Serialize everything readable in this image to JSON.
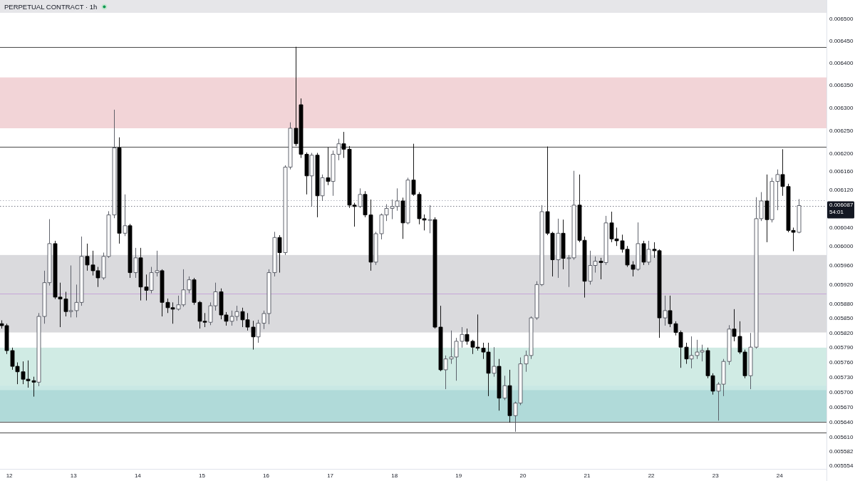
{
  "chart_data": {
    "type": "candlestick",
    "title": "PERPETUAL CONTRACT · 1h",
    "x": [
      11.875,
      11.9583,
      12.0417,
      12.125,
      12.2083,
      12.2917,
      12.375,
      12.4583,
      12.5417,
      12.625,
      12.7083,
      12.7917,
      12.875,
      12.9583,
      13.0417,
      13.125,
      13.2083,
      13.2917,
      13.375,
      13.4583,
      13.5417,
      13.625,
      13.7083,
      13.7917,
      13.875,
      13.9583,
      14.0417,
      14.125,
      14.2083,
      14.2917,
      14.375,
      14.4583,
      14.5417,
      14.625,
      14.7083,
      14.7917,
      14.875,
      14.9583,
      15.0417,
      15.125,
      15.2083,
      15.2917,
      15.375,
      15.4583,
      15.5417,
      15.625,
      15.7083,
      15.7917,
      15.875,
      15.9583,
      16.0417,
      16.125,
      16.2083,
      16.2917,
      16.375,
      16.4583,
      16.5417,
      16.625,
      16.7083,
      16.7917,
      16.875,
      16.9583,
      17.0417,
      17.125,
      17.2083,
      17.2917,
      17.375,
      17.4583,
      17.5417,
      17.625,
      17.7083,
      17.7917,
      17.875,
      17.9583,
      18.0417,
      18.125,
      18.2083,
      18.2917,
      18.375,
      18.4583,
      18.5417,
      18.625,
      18.7083,
      18.7917,
      18.875,
      18.9583,
      19.0417,
      19.125,
      19.2083,
      19.2917,
      19.375,
      19.4583,
      19.5417,
      19.625,
      19.7083,
      19.7917,
      19.875,
      19.9583,
      20.0417,
      20.125,
      20.2083,
      20.2917,
      20.375,
      20.4583,
      20.5417,
      20.625,
      20.7083,
      20.7917,
      20.875,
      20.9583,
      21.0417,
      21.125,
      21.2083,
      21.2917,
      21.375,
      21.4583,
      21.5417,
      21.625,
      21.7083,
      21.7917,
      21.875,
      21.9583,
      22.0417,
      22.125,
      22.2083,
      22.2917,
      22.375,
      22.4583,
      22.5417,
      22.625,
      22.7083,
      22.7917,
      22.875,
      22.9583,
      23.0417,
      23.125,
      23.2083,
      23.2917,
      23.375,
      23.4583,
      23.5417,
      23.625,
      23.7083,
      23.7917,
      23.875,
      23.9583,
      24.0417,
      24.125,
      24.2083,
      24.2917
    ],
    "ohlc": [
      [
        0.005839,
        0.005846,
        0.005829,
        0.005835
      ],
      [
        0.005835,
        0.005839,
        0.005777,
        0.005784
      ],
      [
        0.005784,
        0.00579,
        0.005745,
        0.005752
      ],
      [
        0.005752,
        0.00576,
        0.005716,
        0.005741
      ],
      [
        0.005741,
        0.005762,
        0.005716,
        0.005726
      ],
      [
        0.005726,
        0.005764,
        0.005709,
        0.005723
      ],
      [
        0.005723,
        0.005731,
        0.005691,
        0.00572
      ],
      [
        0.00572,
        0.005861,
        0.005712,
        0.005854
      ],
      [
        0.005854,
        0.005949,
        0.005839,
        0.005924
      ],
      [
        0.005924,
        0.006058,
        0.005918,
        0.006006
      ],
      [
        0.006006,
        0.006012,
        0.00589,
        0.005894
      ],
      [
        0.005894,
        0.005924,
        0.005832,
        0.00589
      ],
      [
        0.00589,
        0.005905,
        0.005854,
        0.005864
      ],
      [
        0.005864,
        0.00596,
        0.005852,
        0.005866
      ],
      [
        0.005866,
        0.00592,
        0.005852,
        0.005883
      ],
      [
        0.005883,
        0.006021,
        0.005876,
        0.005979
      ],
      [
        0.005979,
        0.006006,
        0.005949,
        0.005961
      ],
      [
        0.005961,
        0.005991,
        0.005939,
        0.005949
      ],
      [
        0.005949,
        0.005957,
        0.005915,
        0.005934
      ],
      [
        0.005934,
        0.005987,
        0.00593,
        0.005979
      ],
      [
        0.005979,
        0.006075,
        0.005976,
        0.006067
      ],
      [
        0.006067,
        0.006296,
        0.00606,
        0.006212
      ],
      [
        0.006212,
        0.006235,
        0.006006,
        0.006028
      ],
      [
        0.006028,
        0.006111,
        0.006022,
        0.006044
      ],
      [
        0.006044,
        0.006048,
        0.005934,
        0.005945
      ],
      [
        0.005945,
        0.005997,
        0.005934,
        0.005976
      ],
      [
        0.005976,
        0.005997,
        0.005887,
        0.005915
      ],
      [
        0.005915,
        0.005941,
        0.005887,
        0.005908
      ],
      [
        0.005908,
        0.005957,
        0.005902,
        0.005945
      ],
      [
        0.005945,
        0.005991,
        0.005937,
        0.005949
      ],
      [
        0.005949,
        0.005952,
        0.005854,
        0.005883
      ],
      [
        0.005883,
        0.005891,
        0.005861,
        0.005872
      ],
      [
        0.005872,
        0.005883,
        0.005839,
        0.005869
      ],
      [
        0.005869,
        0.005897,
        0.005866,
        0.005878
      ],
      [
        0.005878,
        0.005952,
        0.005874,
        0.005909
      ],
      [
        0.005909,
        0.005937,
        0.005902,
        0.00593
      ],
      [
        0.00593,
        0.005934,
        0.005878,
        0.005883
      ],
      [
        0.005883,
        0.005886,
        0.005829,
        0.005844
      ],
      [
        0.005844,
        0.005861,
        0.005832,
        0.005842
      ],
      [
        0.005842,
        0.005883,
        0.005836,
        0.005876
      ],
      [
        0.005876,
        0.005924,
        0.005866,
        0.005905
      ],
      [
        0.005905,
        0.005912,
        0.005848,
        0.005857
      ],
      [
        0.005857,
        0.005863,
        0.005835,
        0.005844
      ],
      [
        0.005844,
        0.005866,
        0.005835,
        0.005854
      ],
      [
        0.005854,
        0.005876,
        0.005845,
        0.005864
      ],
      [
        0.005864,
        0.005872,
        0.005832,
        0.005847
      ],
      [
        0.005847,
        0.005861,
        0.005825,
        0.005832
      ],
      [
        0.005832,
        0.005845,
        0.005786,
        0.005812
      ],
      [
        0.005812,
        0.005847,
        0.0058,
        0.00584
      ],
      [
        0.00584,
        0.005866,
        0.005828,
        0.00586
      ],
      [
        0.00586,
        0.005952,
        0.005838,
        0.005945
      ],
      [
        0.005945,
        0.006031,
        0.005937,
        0.006019
      ],
      [
        0.006019,
        0.006024,
        0.005945,
        0.005987
      ],
      [
        0.005987,
        0.006174,
        0.005982,
        0.00617
      ],
      [
        0.00617,
        0.006268,
        0.006165,
        0.006255
      ],
      [
        0.006255,
        0.006437,
        0.006216,
        0.006221
      ],
      [
        0.006307,
        0.006321,
        0.00619,
        0.006198
      ],
      [
        0.006198,
        0.006202,
        0.006111,
        0.006151
      ],
      [
        0.006151,
        0.006201,
        0.006085,
        0.006196
      ],
      [
        0.006196,
        0.006201,
        0.006062,
        0.006108
      ],
      [
        0.006108,
        0.006154,
        0.006097,
        0.006147
      ],
      [
        0.006147,
        0.006213,
        0.006131,
        0.006139
      ],
      [
        0.006139,
        0.006206,
        0.006108,
        0.006198
      ],
      [
        0.006198,
        0.006232,
        0.006185,
        0.006221
      ],
      [
        0.006221,
        0.006247,
        0.00619,
        0.006209
      ],
      [
        0.006209,
        0.006216,
        0.006082,
        0.006088
      ],
      [
        0.006088,
        0.006093,
        0.006042,
        0.006085
      ],
      [
        0.006085,
        0.006124,
        0.006082,
        0.006111
      ],
      [
        0.006111,
        0.006118,
        0.006062,
        0.006067
      ],
      [
        0.006067,
        0.0061,
        0.005949,
        0.005967
      ],
      [
        0.005967,
        0.006031,
        0.005961,
        0.006027
      ],
      [
        0.006027,
        0.00607,
        0.006015,
        0.006067
      ],
      [
        0.006067,
        0.00609,
        0.006054,
        0.006081
      ],
      [
        0.006081,
        0.0061,
        0.006058,
        0.006085
      ],
      [
        0.006085,
        0.006124,
        0.006076,
        0.006097
      ],
      [
        0.006097,
        0.006104,
        0.006016,
        0.00605
      ],
      [
        0.00605,
        0.006147,
        0.006047,
        0.006142
      ],
      [
        0.006142,
        0.006221,
        0.006108,
        0.006111
      ],
      [
        0.006111,
        0.006116,
        0.006047,
        0.006059
      ],
      [
        0.006059,
        0.006068,
        0.006034,
        0.006056
      ],
      [
        0.006056,
        0.006088,
        0.006028,
        0.006057
      ],
      [
        0.006057,
        0.006062,
        0.005829,
        0.005832
      ],
      [
        0.005832,
        0.005876,
        0.005742,
        0.005745
      ],
      [
        0.005745,
        0.005774,
        0.005706,
        0.005767
      ],
      [
        0.005767,
        0.005825,
        0.005757,
        0.005771
      ],
      [
        0.005771,
        0.00581,
        0.005723,
        0.005803
      ],
      [
        0.005803,
        0.005832,
        0.00579,
        0.005817
      ],
      [
        0.005817,
        0.005829,
        0.005796,
        0.005803
      ],
      [
        0.005803,
        0.005806,
        0.005777,
        0.005791
      ],
      [
        0.005791,
        0.005858,
        0.005784,
        0.005789
      ],
      [
        0.005789,
        0.0058,
        0.005767,
        0.005781
      ],
      [
        0.005781,
        0.0058,
        0.005692,
        0.005738
      ],
      [
        0.005738,
        0.005791,
        0.005731,
        0.005752
      ],
      [
        0.005752,
        0.005767,
        0.005663,
        0.005688
      ],
      [
        0.005688,
        0.005733,
        0.005684,
        0.005713
      ],
      [
        0.005713,
        0.005745,
        0.005639,
        0.005653
      ],
      [
        0.005653,
        0.005681,
        0.005621,
        0.005678
      ],
      [
        0.005678,
        0.00577,
        0.005674,
        0.005757
      ],
      [
        0.005757,
        0.005784,
        0.005741,
        0.005774
      ],
      [
        0.005774,
        0.005854,
        0.005767,
        0.005851
      ],
      [
        0.005851,
        0.005927,
        0.005847,
        0.00592
      ],
      [
        0.00592,
        0.006088,
        0.005917,
        0.006074
      ],
      [
        0.006074,
        0.006215,
        0.006024,
        0.006028
      ],
      [
        0.006028,
        0.006031,
        0.005937,
        0.005972
      ],
      [
        0.005972,
        0.006059,
        0.005934,
        0.006028
      ],
      [
        0.006028,
        0.006057,
        0.005952,
        0.005975
      ],
      [
        0.005975,
        0.005982,
        0.005915,
        0.005976
      ],
      [
        0.005976,
        0.006162,
        0.005972,
        0.006088
      ],
      [
        0.006088,
        0.006154,
        0.006009,
        0.006013
      ],
      [
        0.006013,
        0.006021,
        0.005893,
        0.005927
      ],
      [
        0.005927,
        0.005991,
        0.00592,
        0.00596
      ],
      [
        0.00596,
        0.005979,
        0.005945,
        0.005969
      ],
      [
        0.005969,
        0.005976,
        0.005931,
        0.005966
      ],
      [
        0.005966,
        0.006065,
        0.005961,
        0.00605
      ],
      [
        0.00605,
        0.006074,
        0.006009,
        0.006016
      ],
      [
        0.006016,
        0.00604,
        0.006001,
        0.006012
      ],
      [
        0.006012,
        0.006025,
        0.005987,
        0.005994
      ],
      [
        0.005994,
        0.006001,
        0.005957,
        0.005961
      ],
      [
        0.005961,
        0.005969,
        0.005937,
        0.005952
      ],
      [
        0.005952,
        0.006051,
        0.005949,
        0.006006
      ],
      [
        0.006006,
        0.006012,
        0.005961,
        0.005967
      ],
      [
        0.005967,
        0.006012,
        0.005961,
        0.005994
      ],
      [
        0.005994,
        0.006009,
        0.005976,
        0.005991
      ],
      [
        0.005991,
        0.005994,
        0.00581,
        0.005851
      ],
      [
        0.005851,
        0.005897,
        0.005835,
        0.005866
      ],
      [
        0.005866,
        0.005897,
        0.005832,
        0.005839
      ],
      [
        0.005839,
        0.005844,
        0.005815,
        0.005821
      ],
      [
        0.005821,
        0.005825,
        0.005749,
        0.005791
      ],
      [
        0.005791,
        0.0058,
        0.005757,
        0.005767
      ],
      [
        0.005767,
        0.005813,
        0.005748,
        0.005774
      ],
      [
        0.005774,
        0.005806,
        0.005767,
        0.005781
      ],
      [
        0.005781,
        0.005796,
        0.005762,
        0.005784
      ],
      [
        0.005784,
        0.00579,
        0.005728,
        0.005733
      ],
      [
        0.005733,
        0.005738,
        0.005695,
        0.005702
      ],
      [
        0.005702,
        0.00572,
        0.005643,
        0.005716
      ],
      [
        0.005716,
        0.005767,
        0.005692,
        0.005762
      ],
      [
        0.005762,
        0.005836,
        0.005755,
        0.005828
      ],
      [
        0.005828,
        0.005869,
        0.005803,
        0.005813
      ],
      [
        0.005813,
        0.005844,
        0.005777,
        0.005781
      ],
      [
        0.005781,
        0.005786,
        0.005728,
        0.005733
      ],
      [
        0.005733,
        0.00582,
        0.005706,
        0.005791
      ],
      [
        0.005791,
        0.006105,
        0.005788,
        0.006059
      ],
      [
        0.006059,
        0.006116,
        0.006054,
        0.006097
      ],
      [
        0.006097,
        0.006154,
        0.006009,
        0.006057
      ],
      [
        0.006057,
        0.006147,
        0.006051,
        0.006139
      ],
      [
        0.006139,
        0.006165,
        0.006077,
        0.006154
      ],
      [
        0.006154,
        0.006209,
        0.006108,
        0.006128
      ],
      [
        0.006128,
        0.006134,
        0.00603,
        0.006034
      ],
      [
        0.006034,
        0.00604,
        0.00599,
        0.00603
      ],
      [
        0.00603,
        0.006101,
        0.006028,
        0.006087
      ]
    ],
    "xlim": [
      11.8542,
      24.7292
    ],
    "xticks": [
      12,
      13,
      14,
      15,
      16,
      17,
      18,
      19,
      20,
      21,
      22,
      23,
      24
    ],
    "ylim": [
      0.005548,
      0.006544
    ],
    "log": true,
    "yticks": [
      {
        "value": 0.0065,
        "label": "0.006500"
      },
      {
        "value": 0.00645,
        "label": "0.006450"
      },
      {
        "value": 0.0064,
        "label": "0.006400"
      },
      {
        "value": 0.00635,
        "label": "0.006350"
      },
      {
        "value": 0.0063,
        "label": "0.006300"
      },
      {
        "value": 0.00625,
        "label": "0.006250"
      },
      {
        "value": 0.0062,
        "label": "0.006200"
      },
      {
        "value": 0.00616,
        "label": "0.006160"
      },
      {
        "value": 0.00612,
        "label": "0.006120"
      },
      {
        "value": 0.00604,
        "label": "0.006040"
      },
      {
        "value": 0.006,
        "label": "0.006000"
      },
      {
        "value": 0.00596,
        "label": "0.005960"
      },
      {
        "value": 0.00592,
        "label": "0.005920"
      },
      {
        "value": 0.00588,
        "label": "0.005880"
      },
      {
        "value": 0.00585,
        "label": "0.005850"
      },
      {
        "value": 0.00582,
        "label": "0.005820"
      },
      {
        "value": 0.00579,
        "label": "0.005790"
      },
      {
        "value": 0.00576,
        "label": "0.005760"
      },
      {
        "value": 0.00573,
        "label": "0.005730"
      },
      {
        "value": 0.0057,
        "label": "0.005700"
      },
      {
        "value": 0.00567,
        "label": "0.005670"
      },
      {
        "value": 0.00564,
        "label": "0.005640"
      },
      {
        "value": 0.00561,
        "label": "0.005610"
      },
      {
        "value": 0.005582,
        "label": "0.005582"
      },
      {
        "value": 0.005554,
        "label": "0.005554"
      }
    ],
    "bands": [
      {
        "axis": "y",
        "from": 0.005641,
        "to": 0.005704,
        "color": "#dff0f3"
      },
      {
        "axis": "y",
        "from": 0.006255,
        "to": 0.006368,
        "color": "#f2d4d7"
      },
      {
        "axis": "y",
        "from": 0.005821,
        "to": 0.005982,
        "color": "#dadadd"
      },
      {
        "axis": "y",
        "from": 0.005713,
        "to": 0.00579,
        "color": "#d0ebe4"
      },
      {
        "axis": "y",
        "from": 0.005641,
        "to": 0.005713,
        "color": "#c9e8e4"
      }
    ],
    "ref_lines": [
      {
        "axis": "y",
        "value": 0.006437,
        "color": "#4a4a4a",
        "line_style": "solid"
      },
      {
        "axis": "y",
        "value": 0.006215,
        "color": "#4a4a4a",
        "line_style": "solid"
      },
      {
        "axis": "y",
        "value": 0.005641,
        "color": "#4a4a4a",
        "line_style": "solid"
      },
      {
        "axis": "y",
        "value": 0.00562,
        "color": "#4a4a4a",
        "line_style": "solid"
      },
      {
        "axis": "y",
        "value": 0.005902,
        "color": "#c7a6d8",
        "line_style": "solid"
      },
      {
        "axis": "y",
        "value": 0.006099,
        "color": "#b2b5be",
        "line_style": "dotted"
      },
      {
        "axis": "y",
        "value": 0.006087,
        "label": "0.006087",
        "color": "#787b86",
        "line_style": "dotted"
      }
    ],
    "annotations": [
      "54:01"
    ]
  }
}
